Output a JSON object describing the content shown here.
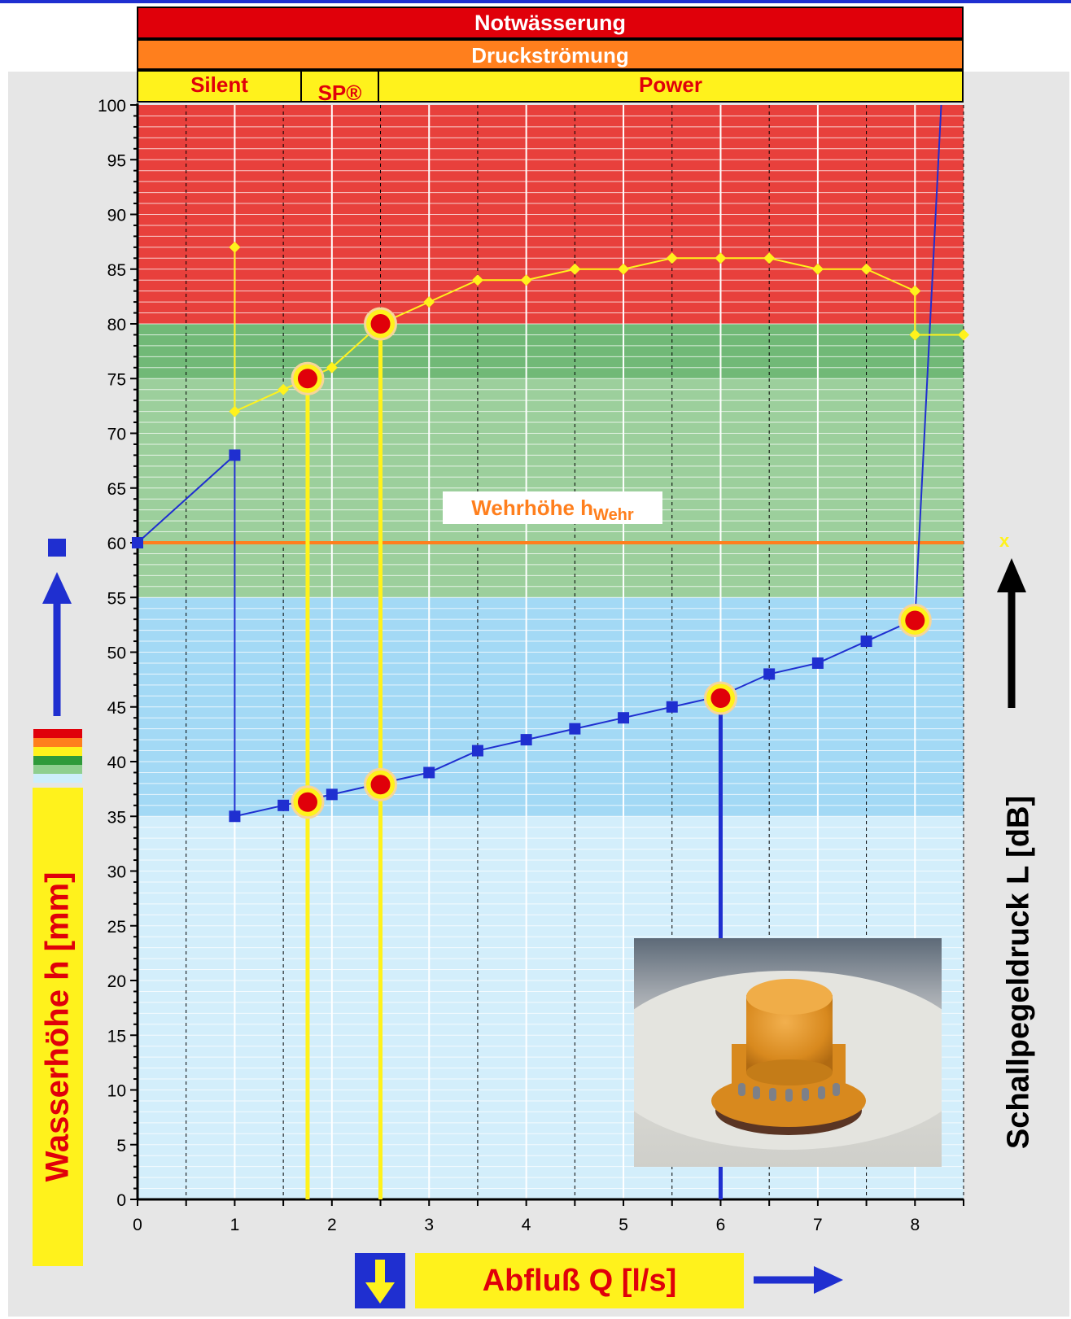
{
  "bands": {
    "notwasserung": "Notwässerung",
    "druckstroemung": "Druckströmung",
    "silent": "Silent",
    "sp": "SP®",
    "power": "Power"
  },
  "labels": {
    "wehr_main": "Wehrhöhe h",
    "wehr_sub": "Wehr",
    "y_left": "Wasserhöhe h [mm]",
    "y_right": "Schallpegeldruck L [dB]",
    "x": "Abfluß Q [l/s]",
    "x_marker": "x"
  },
  "icons": {
    "square": "blue-square-marker",
    "arrows": "arrow-icon",
    "down": "down-arrow-icon"
  },
  "colors": {
    "red_zone": "#e8403c",
    "green_zone": "#9ccf9c",
    "green_dark": "#4fa85a",
    "blue_zone": "#a3d9f5",
    "light_blue_zone": "#d3eefb",
    "water_line": "#1f2fd0",
    "sound_line": "#fff21c",
    "wehr_line": "#ff7f1d",
    "highlight": "#e0000a"
  },
  "chart_data": {
    "type": "line",
    "xlabel": "Abfluß Q [l/s]",
    "ylabel": "Wasserhöhe h [mm]",
    "y2label": "Schallpegeldruck L [dB]",
    "xlim": [
      0,
      8.5
    ],
    "ylim": [
      0,
      100
    ],
    "x_ticks": [
      0,
      1,
      2,
      3,
      4,
      5,
      6,
      7,
      8
    ],
    "y_ticks": [
      0,
      5,
      10,
      15,
      20,
      25,
      30,
      35,
      40,
      45,
      50,
      55,
      60,
      65,
      70,
      75,
      80,
      85,
      90,
      95,
      100
    ],
    "grid": true,
    "zones": [
      {
        "from": 80,
        "to": 100,
        "color": "red"
      },
      {
        "from": 55,
        "to": 80,
        "color": "green"
      },
      {
        "from": 35,
        "to": 55,
        "color": "blue"
      },
      {
        "from": 0,
        "to": 35,
        "color": "light-blue"
      }
    ],
    "wehr_height": 60,
    "series": [
      {
        "key": "water",
        "color": "#1f2fd0",
        "marker": "square",
        "points": [
          [
            0,
            60
          ],
          [
            1,
            68
          ],
          [
            1,
            35
          ],
          [
            1.5,
            36
          ],
          [
            2,
            37
          ],
          [
            2.5,
            38
          ],
          [
            3,
            39
          ],
          [
            3.5,
            41
          ],
          [
            4,
            42
          ],
          [
            4.5,
            43
          ],
          [
            5,
            44
          ],
          [
            5.5,
            45
          ],
          [
            6,
            46
          ],
          [
            6.5,
            48
          ],
          [
            7,
            49
          ],
          [
            7.5,
            51
          ],
          [
            8,
            53
          ],
          [
            8.27,
            100
          ]
        ]
      },
      {
        "key": "sound",
        "color": "#fff21c",
        "marker": "diamond",
        "points": [
          [
            1,
            87
          ],
          [
            1,
            72
          ],
          [
            1.5,
            74
          ],
          [
            2,
            76
          ],
          [
            2.5,
            80
          ],
          [
            3,
            82
          ],
          [
            3.5,
            84
          ],
          [
            4,
            84
          ],
          [
            4.5,
            85
          ],
          [
            5,
            85
          ],
          [
            5.5,
            86
          ],
          [
            6,
            86
          ],
          [
            6.5,
            86
          ],
          [
            7,
            85
          ],
          [
            7.5,
            85
          ],
          [
            8,
            83
          ],
          [
            8,
            79
          ],
          [
            8.5,
            79
          ]
        ]
      }
    ],
    "highlights": [
      [
        1.75,
        75
      ],
      [
        2.5,
        80
      ],
      [
        1.75,
        36.3
      ],
      [
        2.5,
        37.9
      ],
      [
        6,
        45.8
      ],
      [
        8,
        52.9
      ]
    ],
    "drop_lines": [
      {
        "x": 1.75,
        "from": 75,
        "color": "#fff21c"
      },
      {
        "x": 2.5,
        "from": 80,
        "color": "#fff21c"
      },
      {
        "x": 6,
        "from": 45.8,
        "color": "#1f2fd0"
      }
    ]
  }
}
